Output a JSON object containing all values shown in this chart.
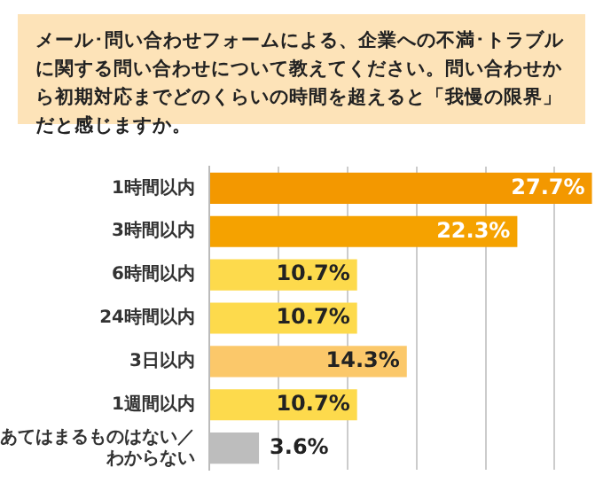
{
  "chart_data": {
    "type": "bar",
    "orientation": "horizontal",
    "title": "メール･問い合わせフォームによる、企業への不満･トラブルに関する問い合わせについて教えてください。問い合わせから初期対応までどのくらいの時間を超えると「我慢の限界」だと感じますか。",
    "categories": [
      "1時間以内",
      "3時間以内",
      "6時間以内",
      "24時間以内",
      "3日以内",
      "1週間以内",
      "あてはまるものはない／わからない"
    ],
    "values": [
      27.7,
      22.3,
      10.7,
      10.7,
      14.3,
      10.7,
      3.6
    ],
    "colors": [
      "#f39800",
      "#f5a200",
      "#fdda4c",
      "#fdda4c",
      "#fbc86a",
      "#fdda4c",
      "#bdbdbd"
    ],
    "value_labels": [
      "27.7%",
      "22.3%",
      "10.7%",
      "10.7%",
      "14.3%",
      "10.7%",
      "3.6%"
    ],
    "xlim": [
      0,
      28.5
    ],
    "xticks": [
      {
        "value": 0,
        "label": null
      },
      {
        "value": 5,
        "label": null
      },
      {
        "value": 10,
        "label": null
      },
      {
        "value": 15,
        "label": null
      },
      {
        "value": 20,
        "label": null
      },
      {
        "value": 25,
        "label": null
      }
    ],
    "grid": "x",
    "tick_labels": "y"
  }
}
